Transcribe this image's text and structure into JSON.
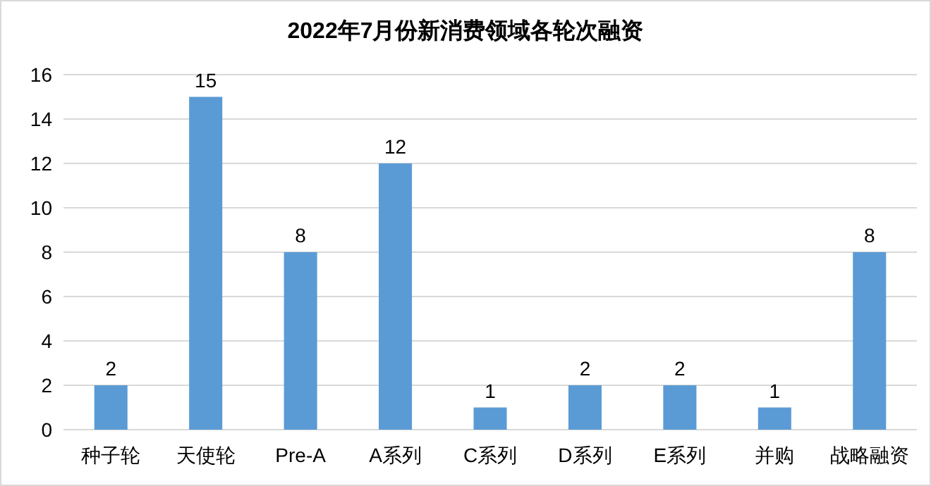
{
  "chart_data": {
    "type": "bar",
    "title": "2022年7月份新消费领域各轮次融资",
    "categories": [
      "种子轮",
      "天使轮",
      "Pre-A",
      "A系列",
      "C系列",
      "D系列",
      "E系列",
      "并购",
      "战略融资"
    ],
    "values": [
      2,
      15,
      8,
      12,
      1,
      2,
      2,
      1,
      8
    ],
    "color": "#5b9bd5",
    "ylim": [
      0,
      16
    ],
    "yticks": [
      0,
      2,
      4,
      6,
      8,
      10,
      12,
      14,
      16
    ],
    "grid": "y",
    "data_labels": true
  }
}
